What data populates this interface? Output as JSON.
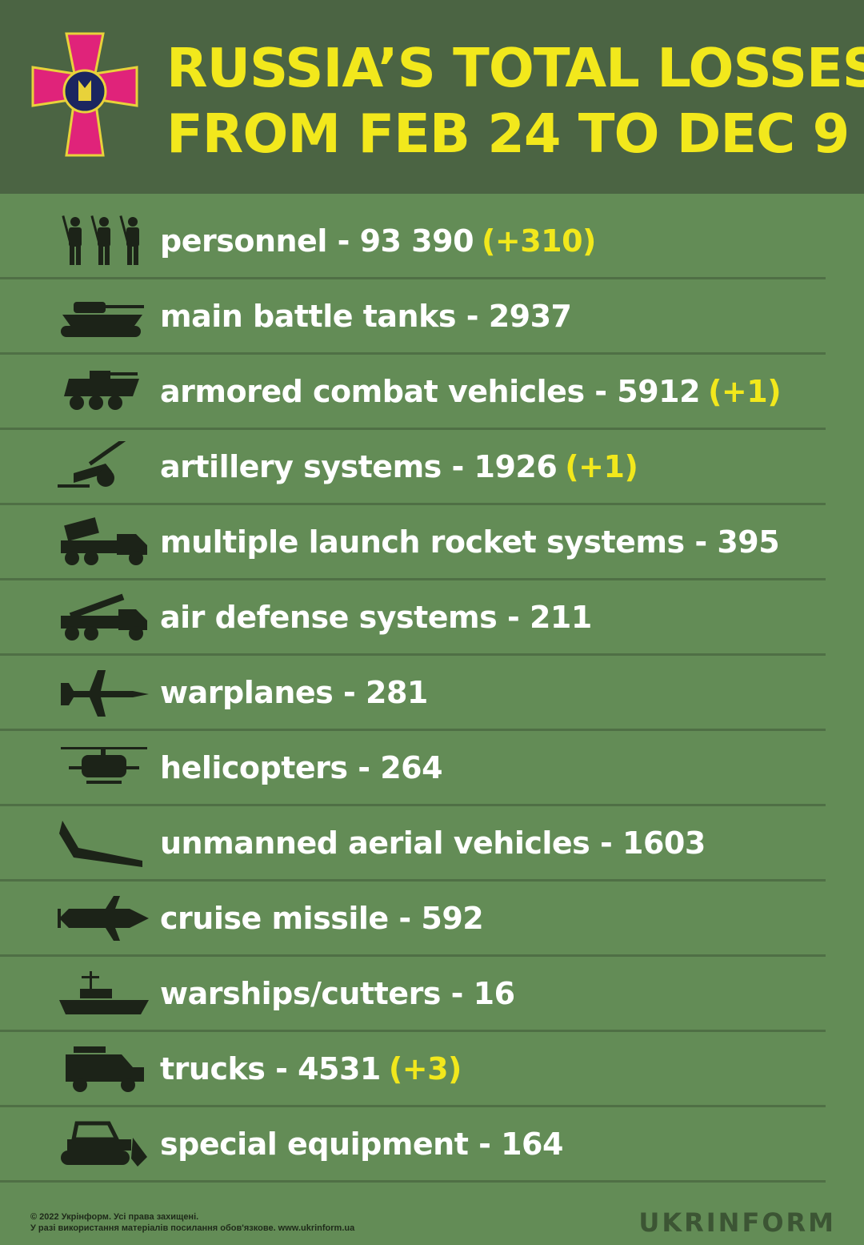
{
  "header": {
    "title_line1": "RUSSIA’S TOTAL LOSSES",
    "title_line2": "FROM FEB 24 TO DEC 9"
  },
  "colors": {
    "header_bg": "#4b6443",
    "body_bg": "#638c56",
    "accent_yellow": "#f2e81c",
    "icon_dark": "#1c2318"
  },
  "items": [
    {
      "icon": "soldiers-icon",
      "label": "personnel - 93 390",
      "delta": "(+310)"
    },
    {
      "icon": "tank-icon",
      "label": "main battle tanks - 2937",
      "delta": ""
    },
    {
      "icon": "armored-vehicle-icon",
      "label": "armored combat vehicles - 5912",
      "delta": "(+1)"
    },
    {
      "icon": "artillery-icon",
      "label": "artillery systems - 1926",
      "delta": "(+1)"
    },
    {
      "icon": "rocket-launcher-truck-icon",
      "label": "multiple launch rocket systems - 395",
      "delta": ""
    },
    {
      "icon": "air-defense-truck-icon",
      "label": "air defense systems - 211",
      "delta": ""
    },
    {
      "icon": "warplane-icon",
      "label": "warplanes - 281",
      "delta": ""
    },
    {
      "icon": "helicopter-icon",
      "label": "helicopters - 264",
      "delta": ""
    },
    {
      "icon": "drone-icon",
      "label": "unmanned aerial vehicles - 1603",
      "delta": ""
    },
    {
      "icon": "missile-icon",
      "label": "cruise missile - 592",
      "delta": ""
    },
    {
      "icon": "warship-icon",
      "label": "warships/cutters - 16",
      "delta": ""
    },
    {
      "icon": "truck-icon",
      "label": "trucks - 4531",
      "delta": "(+3)"
    },
    {
      "icon": "bulldozer-icon",
      "label": "special equipment - 164",
      "delta": ""
    }
  ],
  "footer": {
    "copyright": "© 2022 Укрінформ. Усі права захищені.",
    "notice": "У разі використання матеріалів посилання обов'язкове. www.ukrinform.ua",
    "brand": "UKRINFORM"
  }
}
